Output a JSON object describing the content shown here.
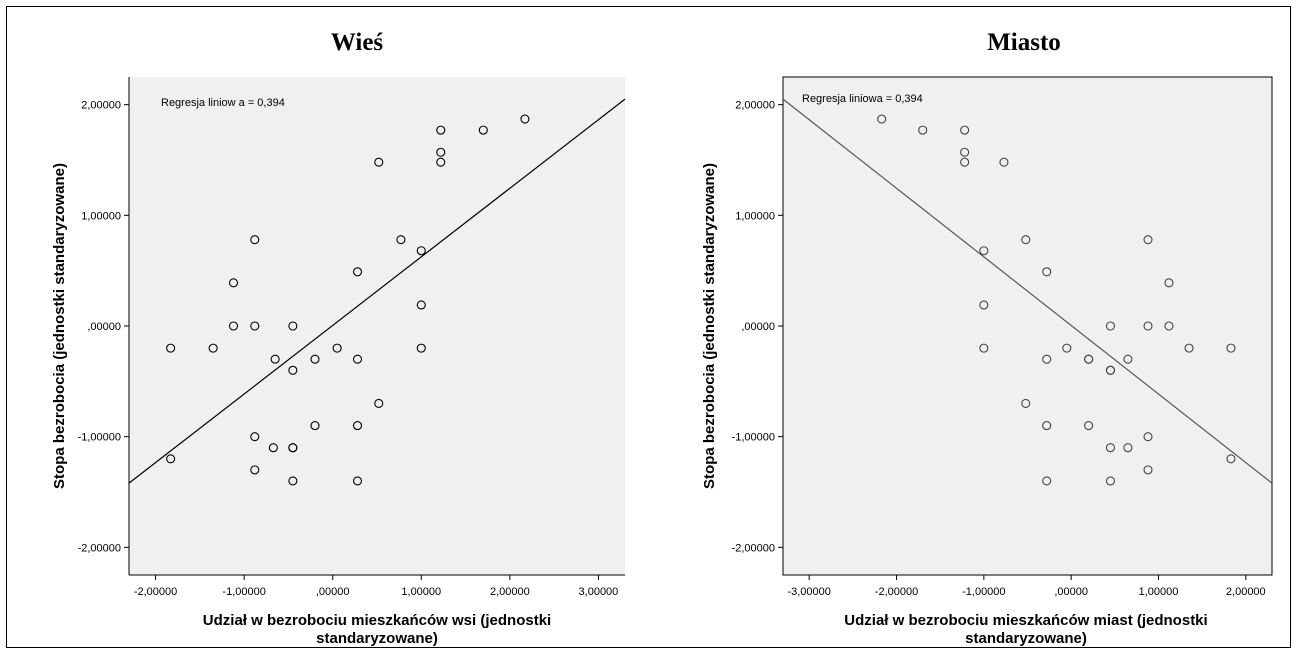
{
  "chart_data": [
    {
      "type": "scatter",
      "title": "Wieś",
      "xlabel": "Udział w bezrobociu mieszkańców wsi (jednostki standaryzowane)",
      "xlabel_lines": [
        "Udział w bezrobociu mieszkańców wsi (jednostki",
        "standaryzowane)"
      ],
      "ylabel": "Stopa bezrobocia (jednostki standaryzowane)",
      "annotation": "Regresja liniow a = 0,394",
      "xlim": [
        -2.3,
        3.3
      ],
      "ylim": [
        -2.25,
        2.25
      ],
      "xticks": [
        -2,
        -1,
        0,
        1,
        2,
        3
      ],
      "xtick_labels": [
        "-2,00000",
        "-1,00000",
        ",00000",
        "1,00000",
        "2,00000",
        "3,00000"
      ],
      "yticks": [
        -2,
        -1,
        0,
        1,
        2
      ],
      "ytick_labels": [
        "-2,00000",
        "-1,00000",
        ",00000",
        "1,00000",
        "2,00000"
      ],
      "background": "#f0f0f0",
      "regression_line": [
        [
          -2.3,
          -1.42
        ],
        [
          3.3,
          2.05
        ]
      ],
      "x": [
        -1.83,
        -1.35,
        -1.12,
        -0.88,
        -0.45,
        -0.65,
        -0.2,
        0.05,
        0.28,
        -0.45,
        0.52,
        -1.12,
        -0.88,
        0.28,
        -0.45,
        -0.88,
        -0.67,
        -0.45,
        -0.2,
        0.28,
        -0.88,
        -0.45,
        0.28,
        -1.83,
        0.52,
        0.77,
        1.0,
        1.0,
        1.0,
        1.22,
        1.22,
        1.22,
        1.7,
        2.17
      ],
      "y": [
        -0.2,
        -0.2,
        0.0,
        0.0,
        0.0,
        -0.3,
        -0.3,
        -0.2,
        -0.3,
        -0.4,
        -0.7,
        0.39,
        0.78,
        0.49,
        -1.1,
        -1.0,
        -1.1,
        -1.1,
        -0.9,
        -0.9,
        -1.3,
        -1.4,
        -1.4,
        -1.2,
        1.48,
        0.78,
        0.68,
        0.19,
        -0.2,
        1.77,
        1.57,
        1.48,
        1.77,
        1.87
      ]
    },
    {
      "type": "scatter",
      "title": "Miasto",
      "xlabel": "Udział w bezrobociu mieszkańców miast (jednostki standaryzowane)",
      "xlabel_lines": [
        "Udział w bezrobociu mieszkańców miast (jednostki",
        "standaryzowane)"
      ],
      "ylabel": "Stopa bezrobocia (jednostki standaryzowane)",
      "annotation": "Regresja liniowa = 0,394",
      "xlim": [
        -3.3,
        2.3
      ],
      "ylim": [
        -2.25,
        2.25
      ],
      "xticks": [
        -3,
        -2,
        -1,
        0,
        1,
        2
      ],
      "xtick_labels": [
        "-3,00000",
        "-2,00000",
        "-1,00000",
        ",00000",
        "1,00000",
        "2,00000"
      ],
      "yticks": [
        -2,
        -1,
        0,
        1,
        2
      ],
      "ytick_labels": [
        "-2,00000",
        "-1,00000",
        ",00000",
        "1,00000",
        "2,00000"
      ],
      "background": "#f0f0f0",
      "regression_line": [
        [
          -3.3,
          2.05
        ],
        [
          2.3,
          -1.42
        ]
      ],
      "x": [
        -2.17,
        -1.7,
        -1.22,
        -1.22,
        -1.22,
        -0.77,
        -0.52,
        -1.0,
        -0.28,
        -1.0,
        -1.0,
        -0.52,
        -0.28,
        0.2,
        0.88,
        1.12,
        1.12,
        0.45,
        0.88,
        0.45,
        0.45,
        -0.05,
        0.2,
        0.65,
        1.35,
        1.83,
        -0.28,
        0.2,
        0.45,
        0.65,
        0.88,
        0.88,
        -0.28,
        0.45,
        1.83
      ],
      "y": [
        1.87,
        1.77,
        1.77,
        1.57,
        1.48,
        1.48,
        0.78,
        0.68,
        0.49,
        0.19,
        -0.2,
        -0.7,
        -0.3,
        -0.3,
        0.78,
        0.39,
        0.0,
        0.0,
        0.0,
        -0.4,
        -0.4,
        -0.2,
        -0.3,
        -0.3,
        -0.2,
        -0.2,
        -0.9,
        -0.9,
        -1.1,
        -1.1,
        -1.0,
        -1.3,
        -1.4,
        -1.4,
        -1.2
      ]
    }
  ]
}
